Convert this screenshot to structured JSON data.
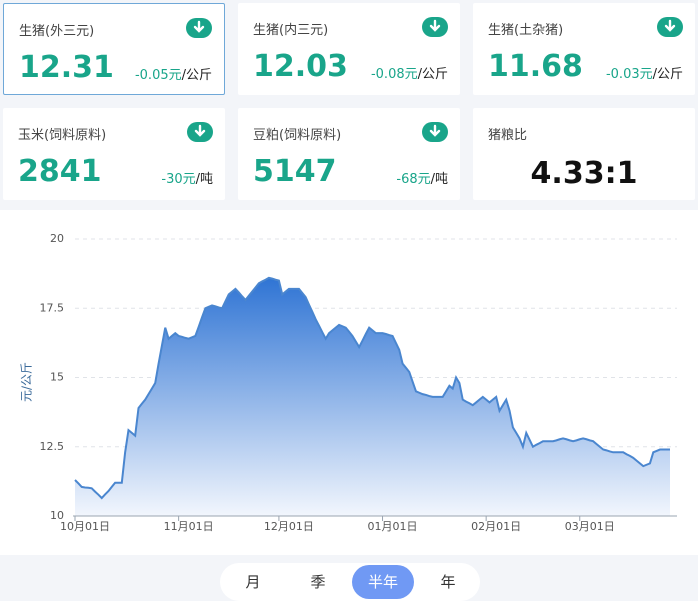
{
  "cards": [
    {
      "title": "生猪(外三元)",
      "value": "12.31",
      "change": "-0.05元",
      "unit": "/公斤"
    },
    {
      "title": "生猪(内三元)",
      "value": "12.03",
      "change": "-0.08元",
      "unit": "/公斤"
    },
    {
      "title": "生猪(土杂猪)",
      "value": "11.68",
      "change": "-0.03元",
      "unit": "/公斤"
    },
    {
      "title": "玉米(饲料原料)",
      "value": "2841",
      "change": "-30元",
      "unit": "/吨"
    },
    {
      "title": "豆粕(饲料原料)",
      "value": "5147",
      "change": "-68元",
      "unit": "/吨"
    },
    {
      "title": "猪粮比",
      "value": "4.33:1"
    }
  ],
  "chart_data": {
    "type": "area",
    "y_label": "元/公斤",
    "categories": [
      "10月01日",
      null,
      null,
      null,
      null,
      null,
      null,
      null,
      null,
      null,
      null,
      null,
      null,
      null,
      null,
      null,
      null,
      null,
      null,
      null,
      null,
      null,
      null,
      null,
      null,
      null,
      null,
      null,
      null,
      null,
      null,
      "11月01日",
      null,
      null,
      null,
      null,
      null,
      null,
      null,
      null,
      null,
      null,
      null,
      null,
      null,
      null,
      null,
      null,
      null,
      null,
      null,
      null,
      null,
      null,
      null,
      null,
      null,
      null,
      null,
      null,
      null,
      "12月01日",
      null,
      null,
      null,
      null,
      null,
      null,
      null,
      null,
      null,
      null,
      null,
      null,
      null,
      null,
      null,
      null,
      null,
      null,
      null,
      null,
      null,
      null,
      null,
      null,
      null,
      null,
      null,
      null,
      null,
      null,
      "01月01日",
      null,
      null,
      null,
      null,
      null,
      null,
      null,
      null,
      null,
      null,
      null,
      null,
      null,
      null,
      null,
      null,
      null,
      null,
      null,
      null,
      null,
      null,
      null,
      null,
      null,
      null,
      null,
      null,
      null,
      null,
      "02月01日",
      null,
      null,
      null,
      null,
      null,
      null,
      null,
      null,
      null,
      null,
      null,
      null,
      null,
      null,
      null,
      null,
      null,
      null,
      null,
      null,
      null,
      null,
      null,
      null,
      null,
      null,
      null,
      "03月01日",
      null,
      null,
      null,
      null,
      null,
      null,
      null,
      null,
      null,
      null,
      null,
      null,
      null,
      null,
      null,
      null,
      null,
      null,
      null,
      null,
      null,
      null,
      null,
      null,
      null,
      null,
      null
    ],
    "values": [
      11.3,
      11.18,
      11.05,
      11.03,
      11.02,
      11.0,
      10.88,
      10.77,
      10.65,
      10.78,
      10.9,
      11.05,
      11.2,
      11.2,
      11.2,
      12.3,
      13.1,
      13.0,
      12.9,
      13.9,
      14.05,
      14.2,
      14.4,
      14.6,
      14.8,
      15.5,
      16.15,
      16.8,
      16.4,
      16.5,
      16.6,
      16.5,
      16.47,
      16.43,
      16.4,
      16.45,
      16.5,
      16.83,
      17.17,
      17.5,
      17.55,
      17.6,
      17.57,
      17.53,
      17.5,
      17.75,
      18.0,
      18.1,
      18.2,
      18.07,
      17.93,
      17.8,
      17.95,
      18.1,
      18.25,
      18.4,
      18.47,
      18.53,
      18.6,
      18.57,
      18.53,
      18.5,
      18.0,
      18.1,
      18.2,
      18.2,
      18.2,
      18.2,
      18.05,
      17.9,
      17.63,
      17.37,
      17.1,
      16.87,
      16.63,
      16.4,
      16.6,
      16.7,
      16.8,
      16.9,
      16.85,
      16.8,
      16.65,
      16.5,
      16.3,
      16.1,
      16.33,
      16.57,
      16.8,
      16.7,
      16.6,
      16.6,
      16.6,
      16.57,
      16.53,
      16.5,
      16.25,
      16.0,
      15.5,
      15.35,
      15.2,
      14.85,
      14.5,
      14.45,
      14.4,
      14.37,
      14.33,
      14.3,
      14.3,
      14.3,
      14.3,
      14.5,
      14.7,
      14.6,
      15.0,
      14.8,
      14.2,
      14.13,
      14.07,
      14.0,
      14.1,
      14.2,
      14.3,
      14.2,
      14.1,
      14.2,
      14.3,
      13.8,
      14.0,
      14.2,
      13.8,
      13.2,
      13.0,
      12.8,
      12.5,
      13.0,
      12.75,
      12.5,
      12.57,
      12.63,
      12.7,
      12.7,
      12.7,
      12.7,
      12.73,
      12.77,
      12.8,
      12.77,
      12.73,
      12.7,
      12.73,
      12.77,
      12.8,
      12.77,
      12.73,
      12.7,
      12.6,
      12.5,
      12.4,
      12.37,
      12.33,
      12.3,
      12.3,
      12.3,
      12.3,
      12.23,
      12.17,
      12.1,
      12.0,
      11.9,
      11.8,
      11.85,
      11.9,
      12.3,
      12.35,
      12.4,
      12.4,
      12.4,
      12.4
    ],
    "color": "#4a86cf",
    "ylim": [
      10,
      20
    ],
    "yticks": [
      10,
      12.5,
      15,
      17.5,
      20
    ],
    "grid": true
  },
  "tabs": {
    "items": [
      "月",
      "季",
      "半年",
      "年"
    ],
    "active": 2
  }
}
